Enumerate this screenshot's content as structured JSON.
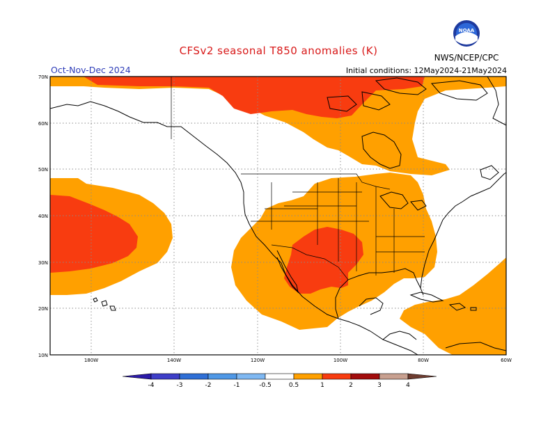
{
  "header": {
    "title": "CFSv2 seasonal T850 anomalies (K)",
    "season": "Oct-Nov-Dec 2024",
    "initial_conditions": "Initial conditions: 12May2024-21May2024",
    "agency": "NWS/NCEP/CPC",
    "logo_text": "NOAA"
  },
  "map": {
    "lat_labels": [
      "70N",
      "60N",
      "50N",
      "40N",
      "30N",
      "20N",
      "10N"
    ],
    "lon_labels": [
      "180W",
      "140W",
      "120W",
      "100W",
      "80W",
      "60W"
    ],
    "anomaly_regions": [
      {
        "name": "pacific-warm-anomaly",
        "level": "0.5-1"
      },
      {
        "name": "pacific-core-anomaly",
        "level": "1-2"
      },
      {
        "name": "arctic-warm-anomaly",
        "level": "1-2"
      },
      {
        "name": "north-america-warm-anomaly",
        "level": "0.5-1"
      },
      {
        "name": "southwest-core-anomaly",
        "level": "1-2"
      },
      {
        "name": "atlantic-warm-anomaly",
        "level": "0.5-1"
      }
    ]
  },
  "colorbar": {
    "labels": [
      "-4",
      "-3",
      "-2",
      "-1",
      "-0.5",
      "0.5",
      "1",
      "2",
      "3",
      "4"
    ],
    "colors": [
      "#2b1aa8",
      "#3e3ec8",
      "#2f6fd6",
      "#4f98e6",
      "#7fb8f2",
      "#ffffff",
      "#ffa000",
      "#f83c10",
      "#a20c0c",
      "#c8a090",
      "#6e3c30"
    ]
  },
  "colors": {
    "level_0_5": "#ffa000",
    "level_1": "#f83c10",
    "level_2": "#a20c0c"
  }
}
